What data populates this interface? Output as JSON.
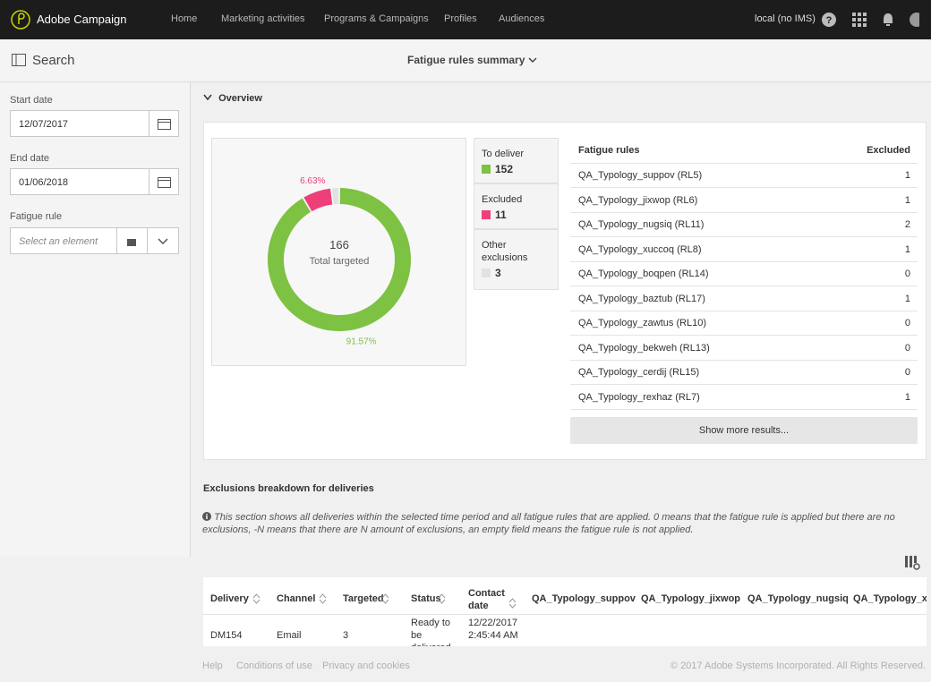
{
  "nav": {
    "brand": "Adobe Campaign",
    "items": [
      "Home",
      "Marketing activities",
      "Programs & Campaigns",
      "Profiles",
      "Audiences"
    ],
    "user": "local (no IMS)"
  },
  "toolbar": {
    "search": "Search",
    "title": "Fatigue rules summary"
  },
  "filters": {
    "start_label": "Start date",
    "start_value": "12/07/2017",
    "end_label": "End date",
    "end_value": "01/06/2018",
    "rule_label": "Fatigue rule",
    "rule_placeholder": "Select an element"
  },
  "overview": {
    "title": "Overview"
  },
  "chart_data": {
    "type": "donut",
    "total": 166,
    "total_label": "Total targeted",
    "categories": [
      "To deliver",
      "Excluded",
      "Other exclusions"
    ],
    "values": [
      152,
      11,
      3
    ],
    "colors": [
      "#7dc242",
      "#ef3f7b",
      "#e2e2e2"
    ],
    "percent_labels": [
      "91.57%",
      "6.63%",
      null
    ]
  },
  "rules_table": {
    "header": [
      "Fatigue rules",
      "Excluded"
    ],
    "rows": [
      [
        "QA_Typology_suppov (RL5)",
        "1"
      ],
      [
        "QA_Typology_jixwop (RL6)",
        "1"
      ],
      [
        "QA_Typology_nugsiq (RL11)",
        "2"
      ],
      [
        "QA_Typology_xuccoq (RL8)",
        "1"
      ],
      [
        "QA_Typology_boqpen (RL14)",
        "0"
      ],
      [
        "QA_Typology_baztub (RL17)",
        "1"
      ],
      [
        "QA_Typology_zawtus (RL10)",
        "0"
      ],
      [
        "QA_Typology_bekweh (RL13)",
        "0"
      ],
      [
        "QA_Typology_cerdij (RL15)",
        "0"
      ],
      [
        "QA_Typology_rexhaz (RL7)",
        "1"
      ]
    ],
    "more": "Show more results..."
  },
  "exclusions": {
    "title": "Exclusions breakdown for deliveries",
    "note": "This section shows all deliveries within the selected time period and all fatigue rules that are applied. 0 means that the fatigue rule is applied but there are no exclusions, -N means that there are N amount of exclusions, an empty field means the fatigue rule is not applied.",
    "header": [
      "Delivery",
      "Channel",
      "Targeted",
      "Status",
      "Contact date",
      "QA_Typology_suppov",
      "QA_Typology_jixwop",
      "QA_Typology_nugsiq",
      "QA_Typology_xu"
    ],
    "rows": [
      [
        "DM154",
        "Email",
        "3",
        "Ready to be delivered",
        "12/22/2017 2:45:44 AM"
      ]
    ]
  },
  "footer": {
    "links": [
      "Help",
      "Conditions of use",
      "Privacy and cookies"
    ],
    "copyright": "© 2017 Adobe Systems Incorporated. All Rights Reserved."
  }
}
